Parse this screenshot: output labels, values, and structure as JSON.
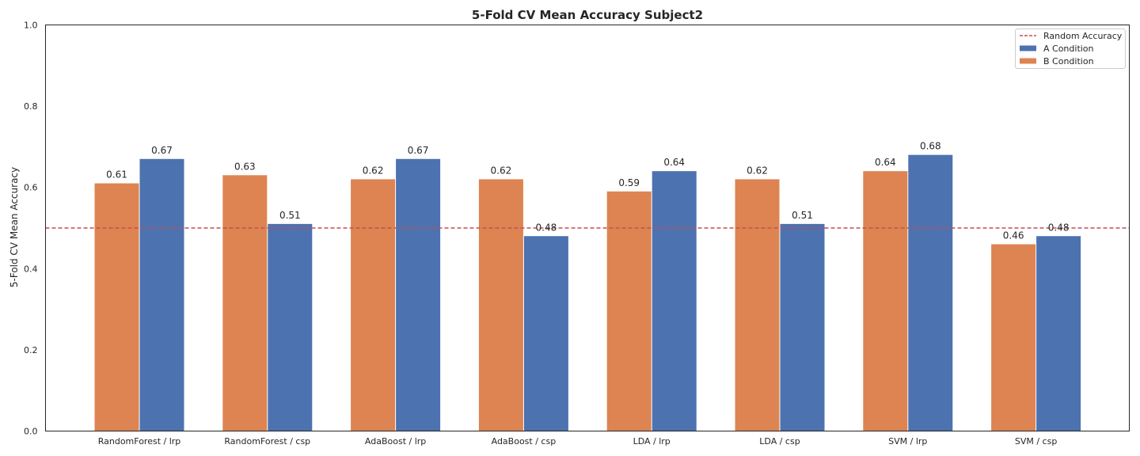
{
  "chart_data": {
    "type": "bar",
    "title": "5-Fold CV Mean Accuracy Subject2",
    "xlabel": "",
    "ylabel": "5-Fold CV Mean Accuracy",
    "ylim": [
      0,
      1.0
    ],
    "yticks": [
      "0.0",
      "0.2",
      "0.4",
      "0.6",
      "0.8",
      "1.0"
    ],
    "grid": false,
    "legend_position": "top-right",
    "categories": [
      "RandomForest / lrp",
      "RandomForest / csp",
      "AdaBoost / lrp",
      "AdaBoost / csp",
      "LDA / lrp",
      "LDA / csp",
      "SVM / lrp",
      "SVM / csp"
    ],
    "series": [
      {
        "name": "B Condition",
        "color": "#dd8452",
        "values": [
          0.61,
          0.63,
          0.62,
          0.62,
          0.59,
          0.62,
          0.64,
          0.46
        ],
        "labels": [
          "0.61",
          "0.63",
          "0.62",
          "0.62",
          "0.59",
          "0.62",
          "0.64",
          "0.46"
        ]
      },
      {
        "name": "A Condition",
        "color": "#4c72b0",
        "values": [
          0.67,
          0.51,
          0.67,
          0.48,
          0.64,
          0.51,
          0.68,
          0.48
        ],
        "labels": [
          "0.67",
          "0.51",
          "0.67",
          "0.48",
          "0.64",
          "0.51",
          "0.68",
          "0.48"
        ]
      }
    ],
    "reference_line": {
      "name": "Random Accuracy",
      "value": 0.5,
      "color": "#c44e52",
      "style": "dashed"
    },
    "legend_order": [
      "Random Accuracy",
      "A Condition",
      "B Condition"
    ]
  }
}
